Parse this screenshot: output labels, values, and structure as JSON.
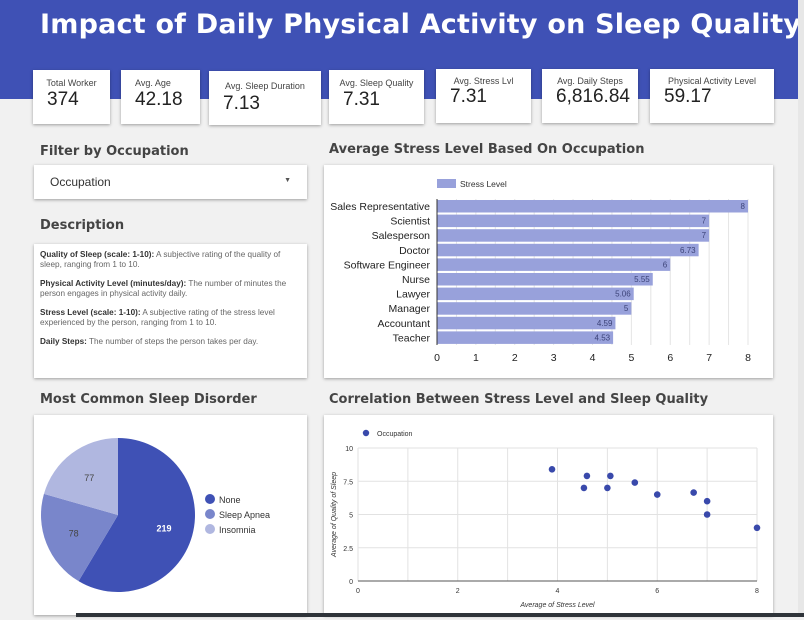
{
  "header": {
    "title": "Impact of Daily Physical Activity on Sleep Quality"
  },
  "stats": [
    {
      "label": "Total Worker",
      "value": "374"
    },
    {
      "label": "Avg. Age",
      "value": "42.18"
    },
    {
      "label": "Avg. Sleep Duration",
      "value": "7.13"
    },
    {
      "label": "Avg. Sleep Quality",
      "value": "7.31"
    },
    {
      "label": "Avg. Stress Lvl",
      "value": "7.31"
    },
    {
      "label": "Avg. Daily Steps",
      "value": "6,816.84"
    },
    {
      "label": "Physical Activity Level",
      "value": "59.17"
    }
  ],
  "filter": {
    "title": "Filter by Occupation",
    "selected": "Occupation",
    "caret": "▼"
  },
  "description": {
    "title": "Description",
    "items": [
      {
        "term": "Quality of Sleep (scale: 1-10):",
        "text": " A subjective rating of the quality of sleep, ranging from 1 to 10."
      },
      {
        "term": "Physical Activity Level (minutes/day):",
        "text": " The number of minutes the person engages in physical activity daily."
      },
      {
        "term": "Stress Level (scale: 1-10):",
        "text": " A subjective rating of the stress level experienced by the person, ranging from 1 to 10."
      },
      {
        "term": "Daily Steps:",
        "text": " The number of steps the person takes per day."
      }
    ]
  },
  "chart_data": [
    {
      "type": "bar",
      "orientation": "horizontal",
      "title": "Average Stress Level Based On Occupation",
      "legend": [
        "Stress Level"
      ],
      "legend_position": "top",
      "categories": [
        "Sales Representative",
        "Scientist",
        "Salesperson",
        "Doctor",
        "Software Engineer",
        "Nurse",
        "Lawyer",
        "Manager",
        "Accountant",
        "Teacher"
      ],
      "values": [
        8,
        7,
        7,
        6.73,
        6,
        5.55,
        5.06,
        5,
        4.59,
        4.53
      ],
      "data_labels": [
        "8",
        "7",
        "7",
        "6.73",
        "6",
        "5.55",
        "5.06",
        "5",
        "4.59",
        "4.53"
      ],
      "xticks": [
        "0",
        "1",
        "2",
        "3",
        "4",
        "5",
        "6",
        "7",
        "8"
      ],
      "xlim": [
        0,
        8
      ],
      "grid": true,
      "color": "#98a1db"
    },
    {
      "type": "pie",
      "title": "Most Common Sleep Disorder",
      "labels": [
        "None",
        "Sleep Apnea",
        "Insomnia"
      ],
      "values": [
        219,
        78,
        77
      ],
      "colors": [
        "#3f51b5",
        "#7986cb",
        "#b0b7e0"
      ],
      "legend_position": "right"
    },
    {
      "type": "scatter",
      "title": "Correlation Between Stress Level and Sleep Quality",
      "legend": [
        "Occupation"
      ],
      "legend_position": "top-left",
      "xlabel": "Average of Stress Level",
      "ylabel": "Average of Quality of Sleep",
      "xlim": [
        0,
        8
      ],
      "ylim": [
        0,
        10
      ],
      "xticks": [
        "0",
        "2",
        "4",
        "6",
        "8"
      ],
      "yticks": [
        "0",
        "2.5",
        "5",
        "7.5",
        "10"
      ],
      "grid": true,
      "color": "#3949ab",
      "points": [
        {
          "x": 3.89,
          "y": 8.4
        },
        {
          "x": 4.53,
          "y": 7.0
        },
        {
          "x": 4.59,
          "y": 7.9
        },
        {
          "x": 5.0,
          "y": 7.0
        },
        {
          "x": 5.06,
          "y": 7.9
        },
        {
          "x": 5.55,
          "y": 7.4
        },
        {
          "x": 6.0,
          "y": 6.5
        },
        {
          "x": 6.73,
          "y": 6.65
        },
        {
          "x": 7.0,
          "y": 6.0
        },
        {
          "x": 7.0,
          "y": 5.0
        },
        {
          "x": 8.0,
          "y": 4.0
        }
      ]
    }
  ]
}
